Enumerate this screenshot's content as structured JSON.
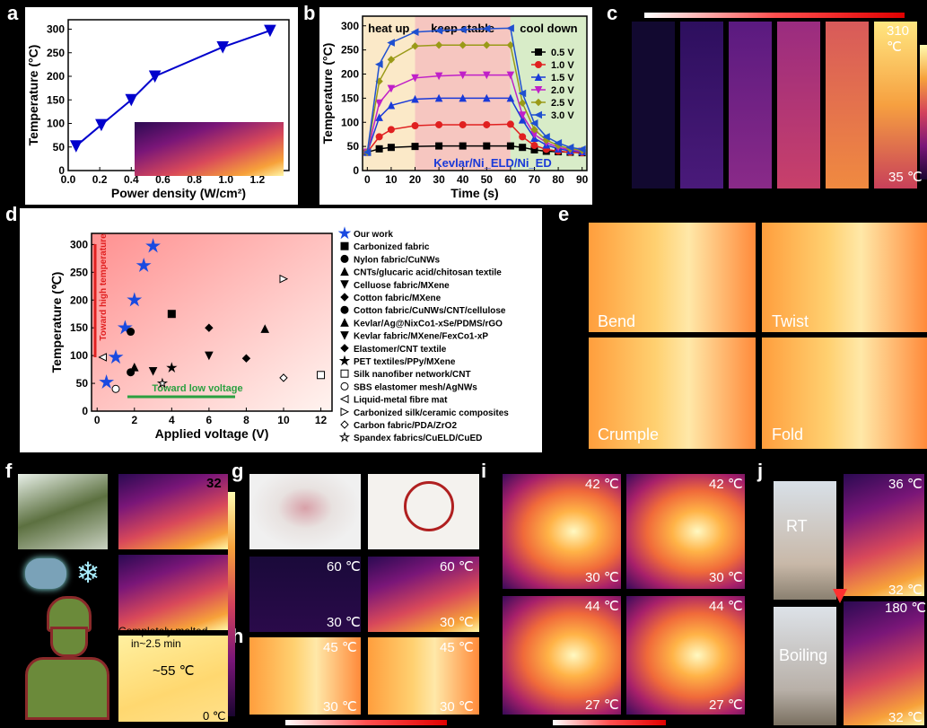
{
  "labels": {
    "a": "a",
    "b": "b",
    "c": "c",
    "d": "d",
    "e": "e",
    "f": "f",
    "g": "g",
    "h": "h",
    "i": "i",
    "j": "j"
  },
  "chart_data": [
    {
      "id": "a",
      "type": "line",
      "xlabel": "Power density (W/cm²)",
      "ylabel": "Temperature (°C)",
      "xlim": [
        0.0,
        1.4
      ],
      "ylim": [
        0,
        320
      ],
      "xticks": [
        "0.0",
        "0.2",
        "0.4",
        "0.6",
        "0.8",
        "1.0",
        "1.2"
      ],
      "yticks": [
        "0",
        "50",
        "100",
        "150",
        "200",
        "250",
        "300"
      ],
      "x": [
        0.05,
        0.21,
        0.4,
        0.55,
        0.98,
        1.28
      ],
      "y": [
        52,
        97,
        150,
        200,
        262,
        297
      ],
      "color": "#0000cc"
    },
    {
      "id": "b",
      "type": "line",
      "xlabel": "Time (s)",
      "ylabel": "Temperature (°C)",
      "xlim": [
        -2,
        92
      ],
      "ylim": [
        0,
        320
      ],
      "xticks": [
        "0",
        "10",
        "20",
        "30",
        "40",
        "50",
        "60",
        "70",
        "80",
        "90"
      ],
      "yticks": [
        "0",
        "50",
        "100",
        "150",
        "200",
        "250",
        "300"
      ],
      "phases": [
        "heat up",
        "keep stable",
        "cool down"
      ],
      "annotation": "Kevlar/Ni_ELD/Ni_ED",
      "x": [
        0,
        5,
        10,
        20,
        30,
        40,
        50,
        60,
        65,
        70,
        75,
        80,
        85,
        90
      ],
      "series": [
        {
          "name": "0.5 V",
          "color": "#000000",
          "marker": "square",
          "values": [
            38,
            45,
            48,
            50,
            51,
            51,
            51,
            51,
            48,
            43,
            40,
            39,
            38,
            37
          ]
        },
        {
          "name": "1.0 V",
          "color": "#e02020",
          "marker": "circle",
          "values": [
            38,
            70,
            85,
            93,
            95,
            95,
            95,
            96,
            70,
            52,
            44,
            40,
            38,
            37
          ]
        },
        {
          "name": "1.5 V",
          "color": "#1a3ad8",
          "marker": "triangle",
          "values": [
            38,
            110,
            135,
            148,
            150,
            150,
            150,
            150,
            105,
            67,
            53,
            45,
            41,
            39
          ]
        },
        {
          "name": "2.0 V",
          "color": "#c020c8",
          "marker": "triangle-down",
          "values": [
            38,
            140,
            170,
            192,
            196,
            198,
            198,
            198,
            115,
            75,
            58,
            48,
            43,
            40
          ]
        },
        {
          "name": "2.5 V",
          "color": "#9a9a18",
          "marker": "diamond",
          "values": [
            38,
            185,
            230,
            258,
            260,
            260,
            260,
            260,
            140,
            85,
            63,
            52,
            45,
            42
          ]
        },
        {
          "name": "3.0 V",
          "color": "#2050d0",
          "marker": "triangle-left",
          "values": [
            38,
            220,
            265,
            287,
            290,
            292,
            294,
            295,
            160,
            98,
            70,
            57,
            48,
            44
          ]
        }
      ]
    },
    {
      "id": "d",
      "type": "scatter",
      "xlabel": "Applied voltage (V)",
      "ylabel": "Temperature (℃)",
      "xlim": [
        -0.3,
        12.6
      ],
      "ylim": [
        0,
        320
      ],
      "xticks": [
        "0",
        "2",
        "4",
        "6",
        "8",
        "10",
        "12"
      ],
      "yticks": [
        "0",
        "50",
        "100",
        "150",
        "200",
        "250",
        "300"
      ],
      "annotations": [
        "Toward high temperature",
        "Toward low voltage"
      ],
      "series": [
        {
          "name": "Our work",
          "marker": "star",
          "color": "#1a4ae0",
          "x": [
            0.5,
            1,
            1.5,
            2,
            2.5,
            3
          ],
          "y": [
            52,
            97,
            150,
            200,
            262,
            297
          ]
        },
        {
          "name": "Carbonized fabric",
          "marker": "square",
          "color": "#000",
          "x": [
            4
          ],
          "y": [
            175
          ]
        },
        {
          "name": "Nylon fabric/CuNWs",
          "marker": "circle",
          "color": "#000",
          "x": [
            1.8
          ],
          "y": [
            143
          ]
        },
        {
          "name": "CNTs/glucaric acid/chitosan textile",
          "marker": "triangle",
          "color": "#000",
          "x": [
            9
          ],
          "y": [
            148
          ]
        },
        {
          "name": "Celluose fabric/MXene",
          "marker": "triangle-down",
          "color": "#000",
          "x": [
            6
          ],
          "y": [
            100
          ]
        },
        {
          "name": "Cotton fabric/MXene",
          "marker": "diamond",
          "color": "#000",
          "x": [
            6
          ],
          "y": [
            150
          ]
        },
        {
          "name": "Cotton fabric/CuNWs/CNT/cellulose",
          "marker": "half-circle",
          "color": "#000",
          "x": [
            1.8
          ],
          "y": [
            70
          ]
        },
        {
          "name": "Kevlar/Ag@NixCo1-xSe/PDMS/rGO",
          "marker": "half-triangle",
          "color": "#000",
          "x": [
            2
          ],
          "y": [
            79
          ]
        },
        {
          "name": "Kevlar fabric/MXene/FexCo1-xP",
          "marker": "half-triangle-down",
          "color": "#000",
          "x": [
            3
          ],
          "y": [
            72
          ]
        },
        {
          "name": "Elastomer/CNT textile",
          "marker": "half-diamond",
          "color": "#000",
          "x": [
            8
          ],
          "y": [
            95
          ]
        },
        {
          "name": "PET textiles/PPy/MXene",
          "marker": "star-small",
          "color": "#000",
          "x": [
            4
          ],
          "y": [
            78
          ]
        },
        {
          "name": "Silk nanofiber network/CNT",
          "marker": "open-square",
          "color": "#000",
          "x": [
            12
          ],
          "y": [
            65
          ]
        },
        {
          "name": "SBS elastomer mesh/AgNWs",
          "marker": "open-circle",
          "color": "#000",
          "x": [
            1
          ],
          "y": [
            40
          ]
        },
        {
          "name": "Liquid-metal fibre mat",
          "marker": "open-triangle-left",
          "color": "#000",
          "x": [
            0.3
          ],
          "y": [
            97
          ]
        },
        {
          "name": "Carbonized silk/ceramic composites",
          "marker": "open-triangle-right",
          "color": "#000",
          "x": [
            10
          ],
          "y": [
            238
          ]
        },
        {
          "name": "Carbon fabric/PDA/ZrO2",
          "marker": "open-diamond",
          "color": "#000",
          "x": [
            10
          ],
          "y": [
            60
          ]
        },
        {
          "name": "Spandex fabrics/CuELD/CuED",
          "marker": "open-star",
          "color": "#000",
          "x": [
            3.5
          ],
          "y": [
            50
          ]
        }
      ]
    }
  ],
  "panel_c": {
    "max_label": "310 ℃",
    "min_label": "35 ℃"
  },
  "panel_e": {
    "captions": [
      "Bend",
      "Twist",
      "Crumple",
      "Fold"
    ]
  },
  "panel_f": {
    "top_label": "32",
    "caption1": "Completely melted",
    "caption2": "in~2.5 min",
    "temp": "~55 ℃",
    "min": "0 ℃"
  },
  "panel_g": {
    "max": "60 ℃",
    "min": "30 ℃",
    "max2": "60 ℃",
    "min2": "30 ℃"
  },
  "panel_h": {
    "max": "45 ℃",
    "min": "30 ℃",
    "max2": "45 ℃",
    "min2": "30 ℃"
  },
  "panel_i": {
    "t1max": "42 ℃",
    "t1min": "30 ℃",
    "t2max": "42 ℃",
    "t2min": "30 ℃",
    "t3max": "44 ℃",
    "t3min": "27 ℃",
    "t4max": "44 ℃",
    "t4min": "27 ℃"
  },
  "panel_j": {
    "rt": "RT",
    "boil": "Boiling",
    "max1": "36 ℃",
    "min1": "32 ℃",
    "max2": "180 ℃",
    "min2": "32 ℃"
  }
}
